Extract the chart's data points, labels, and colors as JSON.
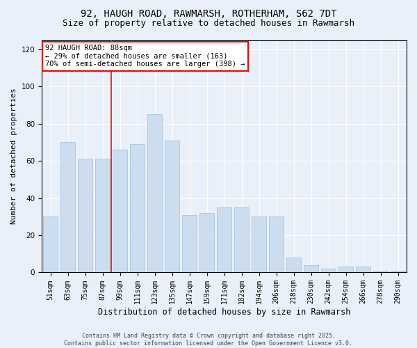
{
  "title_line1": "92, HAUGH ROAD, RAWMARSH, ROTHERHAM, S62 7DT",
  "title_line2": "Size of property relative to detached houses in Rawmarsh",
  "xlabel": "Distribution of detached houses by size in Rawmarsh",
  "ylabel": "Number of detached properties",
  "categories": [
    "51sqm",
    "63sqm",
    "75sqm",
    "87sqm",
    "99sqm",
    "111sqm",
    "123sqm",
    "135sqm",
    "147sqm",
    "159sqm",
    "171sqm",
    "182sqm",
    "194sqm",
    "206sqm",
    "218sqm",
    "230sqm",
    "242sqm",
    "254sqm",
    "266sqm",
    "278sqm",
    "290sqm"
  ],
  "values": [
    30,
    70,
    61,
    61,
    66,
    69,
    85,
    71,
    31,
    32,
    35,
    35,
    30,
    30,
    8,
    4,
    2,
    3,
    3,
    1,
    1
  ],
  "bar_color": "#ccddf0",
  "bar_edge_color": "#a8c4e0",
  "vline_color": "red",
  "vline_x": 3.5,
  "annotation_text": "92 HAUGH ROAD: 88sqm\n← 29% of detached houses are smaller (163)\n70% of semi-detached houses are larger (398) →",
  "annotation_box_color": "white",
  "annotation_box_edge_color": "red",
  "ylim": [
    0,
    125
  ],
  "yticks": [
    0,
    20,
    40,
    60,
    80,
    100,
    120
  ],
  "background_color": "#eaf0fa",
  "plot_bg_color": "#eaf0fa",
  "footer_text": "Contains HM Land Registry data © Crown copyright and database right 2025.\nContains public sector information licensed under the Open Government Licence v3.0.",
  "title_fontsize": 10,
  "subtitle_fontsize": 9,
  "tick_fontsize": 7,
  "xlabel_fontsize": 8.5,
  "ylabel_fontsize": 8,
  "annotation_fontsize": 7.5,
  "footer_fontsize": 6
}
